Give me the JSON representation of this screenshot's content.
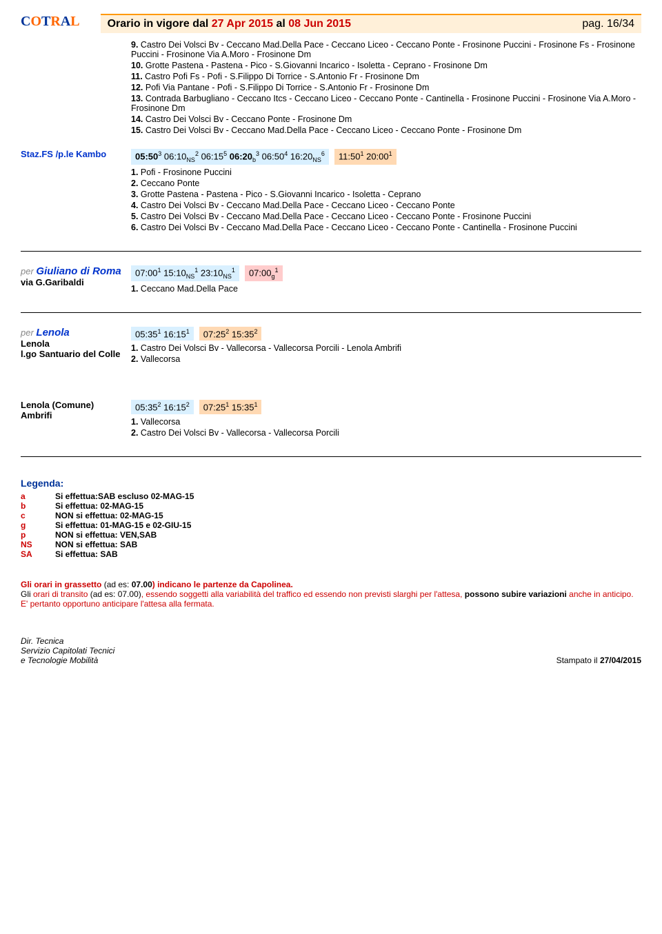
{
  "header": {
    "logo": "COTRAL",
    "title_prefix": "Orario in vigore dal ",
    "date1": "27 Apr 2015",
    "mid": " al ",
    "date2": "08 Jun 2015",
    "pag": "pag. 16/34"
  },
  "block1": [
    {
      "n": "9.",
      "t": "Castro Dei Volsci Bv - Ceccano Mad.Della Pace - Ceccano Liceo - Ceccano Ponte - Frosinone Puccini - Frosinone Fs - Frosinone Puccini - Frosinone Via A.Moro - Frosinone Dm"
    },
    {
      "n": "10.",
      "t": "Grotte Pastena - Pastena - Pico - S.Giovanni Incarico - Isoletta - Ceprano - Frosinone Dm"
    },
    {
      "n": "11.",
      "t": "Castro Pofi Fs - Pofi - S.Filippo Di Torrice - S.Antonio Fr - Frosinone Dm"
    },
    {
      "n": "12.",
      "t": "Pofi Via Pantane - Pofi - S.Filippo Di Torrice - S.Antonio Fr - Frosinone Dm"
    },
    {
      "n": "13.",
      "t": "Contrada Barbugliano - Ceccano Itcs - Ceccano Liceo - Ceccano Ponte - Cantinella - Frosinone Puccini - Frosinone Via A.Moro - Frosinone Dm"
    },
    {
      "n": "14.",
      "t": "Castro Dei Volsci Bv - Ceccano Ponte - Frosinone Dm"
    },
    {
      "n": "15.",
      "t": "Castro Dei Volsci Bv - Ceccano Mad.Della Pace - Ceccano Liceo - Ceccano Ponte - Frosinone Dm"
    }
  ],
  "kambo": {
    "label": "Staz.FS /p.le Kambo",
    "times_html": "<b>05:50</b><sup>3</sup> 06:10<sub>NS</sub><sup>2</sup> 06:15<sup>5</sup> <b>06:20</b><sub>b</sub><sup>3</sup> 06:50<sup>4</sup> 16:20<sub>NS</sub><sup>6</sup>",
    "times_right": "11:50<sup>1</sup> 20:00<sup>1</sup>",
    "routes": [
      {
        "n": "1.",
        "t": "Pofi - Frosinone Puccini"
      },
      {
        "n": "2.",
        "t": "Ceccano Ponte"
      },
      {
        "n": "3.",
        "t": "Grotte Pastena - Pastena - Pico - S.Giovanni Incarico - Isoletta - Ceprano"
      },
      {
        "n": "4.",
        "t": "Castro Dei Volsci Bv - Ceccano Mad.Della Pace - Ceccano Liceo - Ceccano Ponte"
      },
      {
        "n": "5.",
        "t": "Castro Dei Volsci Bv - Ceccano Mad.Della Pace - Ceccano Liceo - Ceccano Ponte - Frosinone Puccini"
      },
      {
        "n": "6.",
        "t": "Castro Dei Volsci Bv - Ceccano Mad.Della Pace - Ceccano Liceo - Ceccano Ponte - Cantinella - Frosinone Puccini"
      }
    ]
  },
  "giuliano": {
    "per": "per ",
    "name": "Giuliano di Roma",
    "sub": "via G.Garibaldi",
    "times_html": "07:00<sup>1</sup> 15:10<sub>NS</sub><sup>1</sup> 23:10<sub>NS</sub><sup>1</sup>",
    "times_right": "07:00<sub>g</sub><sup>1</sup>",
    "routes": [
      {
        "n": "1.",
        "t": "Ceccano Mad.Della Pace"
      }
    ]
  },
  "lenola1": {
    "per": "per ",
    "name": "Lenola",
    "sub1": "Lenola",
    "sub2": "l.go Santuario del Colle",
    "times_html": "05:35<sup>1</sup> 16:15<sup>1</sup>",
    "times_right": "07:25<sup>2</sup> 15:35<sup>2</sup>",
    "routes": [
      {
        "n": "1.",
        "t": "Castro Dei Volsci Bv - Vallecorsa - Vallecorsa Porcili - Lenola Ambrifi"
      },
      {
        "n": "2.",
        "t": "Vallecorsa"
      }
    ]
  },
  "lenola2": {
    "sub1": "Lenola (Comune)",
    "sub2": "Ambrifi",
    "times_html": "05:35<sup>2</sup> 16:15<sup>2</sup>",
    "times_right": "07:25<sup>1</sup> 15:35<sup>1</sup>",
    "routes": [
      {
        "n": "1.",
        "t": "Vallecorsa"
      },
      {
        "n": "2.",
        "t": "Castro Dei Volsci Bv - Vallecorsa - Vallecorsa Porcili"
      }
    ]
  },
  "legend": {
    "title": "Legenda:",
    "rows": [
      {
        "k": "a",
        "v": "Si effettua:SAB escluso 02-MAG-15"
      },
      {
        "k": "b",
        "v": "Si effettua: 02-MAG-15"
      },
      {
        "k": "c",
        "v": "NON si effettua: 02-MAG-15"
      },
      {
        "k": "g",
        "v": "Si effettua: 01-MAG-15 e 02-GIU-15"
      },
      {
        "k": "p",
        "v": "NON si effettua: VEN,SAB"
      },
      {
        "k": "NS",
        "v": "NON si effettua: SAB"
      },
      {
        "k": "SA",
        "v": "Si effettua: SAB"
      }
    ]
  },
  "notes": {
    "l1a": "Gli orari in grassetto ",
    "l1b": "(ad es: ",
    "l1c": "07.00",
    "l1d": ") indicano le partenze da Capolinea.",
    "l2a": "Gli ",
    "l2b": "orari di transito",
    "l2c": " (ad es: 07.00)",
    "l2d": ", essendo soggetti alla variabilità del traffico ed essendo non previsti slarghi per l'attesa, ",
    "l2e": "possono subire variazioni",
    "l2f": " anche in anticipo. ",
    "l2g": "E' pertanto opportuno anticipare l'attesa alla fermata."
  },
  "footer": {
    "l1": "Dir. Tecnica",
    "l2": "Servizio Capitolati Tecnici",
    "l3": "e Tecnologie Mobilità",
    "r": "Stampato il ",
    "rd": "27/04/2015"
  }
}
